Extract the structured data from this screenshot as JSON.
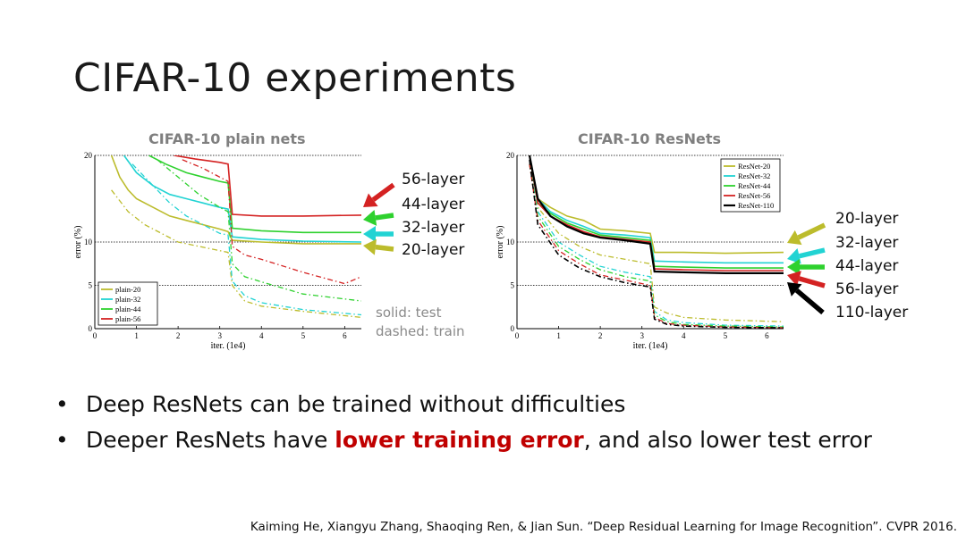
{
  "slide": {
    "title": "CIFAR-10 experiments",
    "bullets": [
      {
        "before": "Deep ResNets can be trained without difficulties",
        "highlight": "",
        "after": ""
      },
      {
        "before": "Deeper ResNets have ",
        "highlight": "lower training error",
        "after": ", and also lower test error"
      }
    ],
    "citation": "Kaiming He, Xiangyu Zhang, Shaoqing Ren, & Jian Sun. “Deep Residual Learning for Image Recognition”. CVPR 2016.",
    "note_solid": "solid: test",
    "note_dashed": "dashed: train",
    "highlight_color": "#c00000"
  },
  "chart_data": [
    {
      "type": "line",
      "title": "CIFAR-10 plain nets",
      "xlabel": "iter. (1e4)",
      "ylabel": "error (%)",
      "xlim": [
        0,
        6.4
      ],
      "ylim": [
        0,
        20
      ],
      "xticks": [
        "0",
        "1",
        "2",
        "3",
        "4",
        "5",
        "6"
      ],
      "yticks": [
        "0",
        "5",
        "10",
        "20"
      ],
      "gridlines_y": [
        5,
        10,
        20
      ],
      "legend": "bottom-left",
      "series": [
        {
          "name": "plain-20",
          "color": "#bcbc2c",
          "test": [
            [
              0.4,
              20
            ],
            [
              0.6,
              17.5
            ],
            [
              0.8,
              16
            ],
            [
              1,
              15
            ],
            [
              1.4,
              14
            ],
            [
              1.8,
              13
            ],
            [
              2.2,
              12.5
            ],
            [
              2.6,
              12
            ],
            [
              3.0,
              11.5
            ],
            [
              3.2,
              11.2
            ],
            [
              3.3,
              10.2
            ],
            [
              4,
              10
            ],
            [
              5,
              9.8
            ],
            [
              6.4,
              9.8
            ]
          ],
          "train": [
            [
              0.4,
              16
            ],
            [
              0.8,
              13.5
            ],
            [
              1.2,
              12
            ],
            [
              1.6,
              11
            ],
            [
              2.0,
              10
            ],
            [
              2.4,
              9.6
            ],
            [
              3.0,
              9
            ],
            [
              3.2,
              8.8
            ],
            [
              3.3,
              5
            ],
            [
              3.6,
              3.2
            ],
            [
              4,
              2.6
            ],
            [
              5,
              2
            ],
            [
              6.4,
              1.3
            ]
          ]
        },
        {
          "name": "plain-32",
          "color": "#22d3d3",
          "test": [
            [
              0.7,
              20
            ],
            [
              1,
              18
            ],
            [
              1.4,
              16.5
            ],
            [
              1.8,
              15.5
            ],
            [
              2.2,
              15
            ],
            [
              2.6,
              14.5
            ],
            [
              3.0,
              14
            ],
            [
              3.2,
              13.8
            ],
            [
              3.3,
              10.6
            ],
            [
              4,
              10.3
            ],
            [
              5,
              10.1
            ],
            [
              6.4,
              10
            ]
          ],
          "train": [
            [
              0.9,
              19
            ],
            [
              1.3,
              17
            ],
            [
              1.8,
              14.5
            ],
            [
              2.2,
              13
            ],
            [
              2.6,
              12
            ],
            [
              3.0,
              11
            ],
            [
              3.2,
              10.8
            ],
            [
              3.3,
              5.5
            ],
            [
              3.6,
              3.8
            ],
            [
              4,
              3
            ],
            [
              5,
              2.2
            ],
            [
              6.4,
              1.6
            ]
          ]
        },
        {
          "name": "plain-44",
          "color": "#2ed12e",
          "test": [
            [
              1.3,
              20
            ],
            [
              1.7,
              19
            ],
            [
              2.2,
              18
            ],
            [
              2.6,
              17.5
            ],
            [
              3.0,
              17
            ],
            [
              3.2,
              16.8
            ],
            [
              3.3,
              11.6
            ],
            [
              4,
              11.3
            ],
            [
              5,
              11.1
            ],
            [
              6.4,
              11.1
            ]
          ],
          "train": [
            [
              1.5,
              19.5
            ],
            [
              2.0,
              17.5
            ],
            [
              2.5,
              15.5
            ],
            [
              3.0,
              14
            ],
            [
              3.2,
              13.5
            ],
            [
              3.3,
              7.5
            ],
            [
              3.6,
              6
            ],
            [
              4,
              5.4
            ],
            [
              5,
              4
            ],
            [
              6.4,
              3.2
            ]
          ]
        },
        {
          "name": "plain-56",
          "color": "#d42222",
          "test": [
            [
              1.9,
              20
            ],
            [
              2.4,
              19.6
            ],
            [
              3.0,
              19.2
            ],
            [
              3.2,
              19
            ],
            [
              3.3,
              13.2
            ],
            [
              4,
              13
            ],
            [
              5,
              13
            ],
            [
              6.4,
              13.1
            ]
          ],
          "train": [
            [
              2.1,
              19.5
            ],
            [
              2.6,
              18.5
            ],
            [
              3.0,
              17.5
            ],
            [
              3.2,
              17
            ],
            [
              3.3,
              9.5
            ],
            [
              3.6,
              8.5
            ],
            [
              4,
              8
            ],
            [
              5,
              6.5
            ],
            [
              6.0,
              5.2
            ],
            [
              6.4,
              6
            ]
          ]
        }
      ]
    },
    {
      "type": "line",
      "title": "CIFAR-10 ResNets",
      "xlabel": "iter. (1e4)",
      "ylabel": "error (%)",
      "xlim": [
        0,
        6.4
      ],
      "ylim": [
        0,
        20
      ],
      "xticks": [
        "0",
        "1",
        "2",
        "3",
        "4",
        "5",
        "6"
      ],
      "yticks": [
        "0",
        "5",
        "10",
        "20"
      ],
      "gridlines_y": [
        5,
        10,
        20
      ],
      "legend": "top-right",
      "series": [
        {
          "name": "ResNet-20",
          "color": "#bcbc2c",
          "test": [
            [
              0.3,
              20
            ],
            [
              0.5,
              15
            ],
            [
              0.8,
              14
            ],
            [
              1.2,
              13
            ],
            [
              1.6,
              12.5
            ],
            [
              2.0,
              11.5
            ],
            [
              2.6,
              11.3
            ],
            [
              3.2,
              11
            ],
            [
              3.3,
              8.8
            ],
            [
              4,
              8.8
            ],
            [
              5,
              8.7
            ],
            [
              6.4,
              8.8
            ]
          ],
          "train": [
            [
              0.3,
              19
            ],
            [
              0.5,
              14
            ],
            [
              1.0,
              11
            ],
            [
              1.5,
              9.5
            ],
            [
              2.0,
              8.5
            ],
            [
              2.6,
              8
            ],
            [
              3.2,
              7.5
            ],
            [
              3.3,
              2.5
            ],
            [
              3.6,
              1.8
            ],
            [
              4,
              1.3
            ],
            [
              5,
              1
            ],
            [
              6.4,
              0.8
            ]
          ]
        },
        {
          "name": "ResNet-32",
          "color": "#22d3d3",
          "test": [
            [
              0.3,
              20
            ],
            [
              0.5,
              15
            ],
            [
              0.8,
              13.5
            ],
            [
              1.2,
              12.5
            ],
            [
              1.6,
              11.8
            ],
            [
              2.0,
              11
            ],
            [
              2.6,
              10.8
            ],
            [
              3.2,
              10.5
            ],
            [
              3.3,
              7.8
            ],
            [
              4,
              7.7
            ],
            [
              5,
              7.6
            ],
            [
              6.4,
              7.6
            ]
          ],
          "train": [
            [
              0.3,
              19
            ],
            [
              0.5,
              13.5
            ],
            [
              1.0,
              10
            ],
            [
              1.5,
              8.5
            ],
            [
              2.0,
              7.2
            ],
            [
              2.6,
              6.5
            ],
            [
              3.2,
              6
            ],
            [
              3.3,
              2
            ],
            [
              3.6,
              1
            ],
            [
              4,
              0.7
            ],
            [
              5,
              0.4
            ],
            [
              6.4,
              0.3
            ]
          ]
        },
        {
          "name": "ResNet-44",
          "color": "#2ed12e",
          "test": [
            [
              0.3,
              20
            ],
            [
              0.5,
              14.5
            ],
            [
              0.8,
              13.3
            ],
            [
              1.2,
              12.2
            ],
            [
              1.6,
              11.5
            ],
            [
              2.0,
              10.8
            ],
            [
              2.6,
              10.5
            ],
            [
              3.2,
              10.2
            ],
            [
              3.3,
              7.2
            ],
            [
              4,
              7.1
            ],
            [
              5,
              7.0
            ],
            [
              6.4,
              7.0
            ]
          ],
          "train": [
            [
              0.3,
              19
            ],
            [
              0.5,
              13
            ],
            [
              1.0,
              9.5
            ],
            [
              1.5,
              8
            ],
            [
              2.0,
              6.8
            ],
            [
              2.6,
              6
            ],
            [
              3.2,
              5.5
            ],
            [
              3.3,
              1.6
            ],
            [
              3.6,
              0.8
            ],
            [
              4,
              0.5
            ],
            [
              5,
              0.3
            ],
            [
              6.4,
              0.2
            ]
          ]
        },
        {
          "name": "ResNet-56",
          "color": "#d42222",
          "test": [
            [
              0.3,
              20
            ],
            [
              0.5,
              14.5
            ],
            [
              0.8,
              13
            ],
            [
              1.2,
              12
            ],
            [
              1.6,
              11.2
            ],
            [
              2.0,
              10.6
            ],
            [
              2.6,
              10.3
            ],
            [
              3.2,
              10
            ],
            [
              3.3,
              6.9
            ],
            [
              4,
              6.8
            ],
            [
              5,
              6.7
            ],
            [
              6.4,
              6.7
            ]
          ],
          "train": [
            [
              0.3,
              19
            ],
            [
              0.5,
              12.5
            ],
            [
              1.0,
              9
            ],
            [
              1.5,
              7.5
            ],
            [
              2.0,
              6.2
            ],
            [
              2.6,
              5.6
            ],
            [
              3.2,
              5
            ],
            [
              3.3,
              1.3
            ],
            [
              3.6,
              0.6
            ],
            [
              4,
              0.4
            ],
            [
              5,
              0.2
            ],
            [
              6.4,
              0.1
            ]
          ]
        },
        {
          "name": "ResNet-110",
          "color": "#000000",
          "test": [
            [
              0.3,
              20
            ],
            [
              0.5,
              15
            ],
            [
              0.8,
              13
            ],
            [
              1.2,
              11.8
            ],
            [
              1.6,
              11
            ],
            [
              2.0,
              10.5
            ],
            [
              2.6,
              10.2
            ],
            [
              3.2,
              9.8
            ],
            [
              3.3,
              6.6
            ],
            [
              4,
              6.5
            ],
            [
              5,
              6.4
            ],
            [
              6.4,
              6.4
            ]
          ],
          "train": [
            [
              0.3,
              19.5
            ],
            [
              0.5,
              12
            ],
            [
              1.0,
              8.5
            ],
            [
              1.5,
              7
            ],
            [
              2.0,
              6
            ],
            [
              2.6,
              5.3
            ],
            [
              3.2,
              4.8
            ],
            [
              3.3,
              1.1
            ],
            [
              3.6,
              0.5
            ],
            [
              4,
              0.3
            ],
            [
              5,
              0.15
            ],
            [
              6.4,
              0.1
            ]
          ]
        }
      ]
    }
  ],
  "annotations": {
    "plain": [
      {
        "label": "56-layer",
        "color": "#d42222"
      },
      {
        "label": "44-layer",
        "color": "#2ed12e"
      },
      {
        "label": "32-layer",
        "color": "#22d3d3"
      },
      {
        "label": "20-layer",
        "color": "#bcbc2c"
      }
    ],
    "resnet": [
      {
        "label": "20-layer",
        "color": "#bcbc2c"
      },
      {
        "label": "32-layer",
        "color": "#22d3d3"
      },
      {
        "label": "44-layer",
        "color": "#2ed12e"
      },
      {
        "label": "56-layer",
        "color": "#d42222"
      },
      {
        "label": "110-layer",
        "color": "#000000"
      }
    ]
  }
}
